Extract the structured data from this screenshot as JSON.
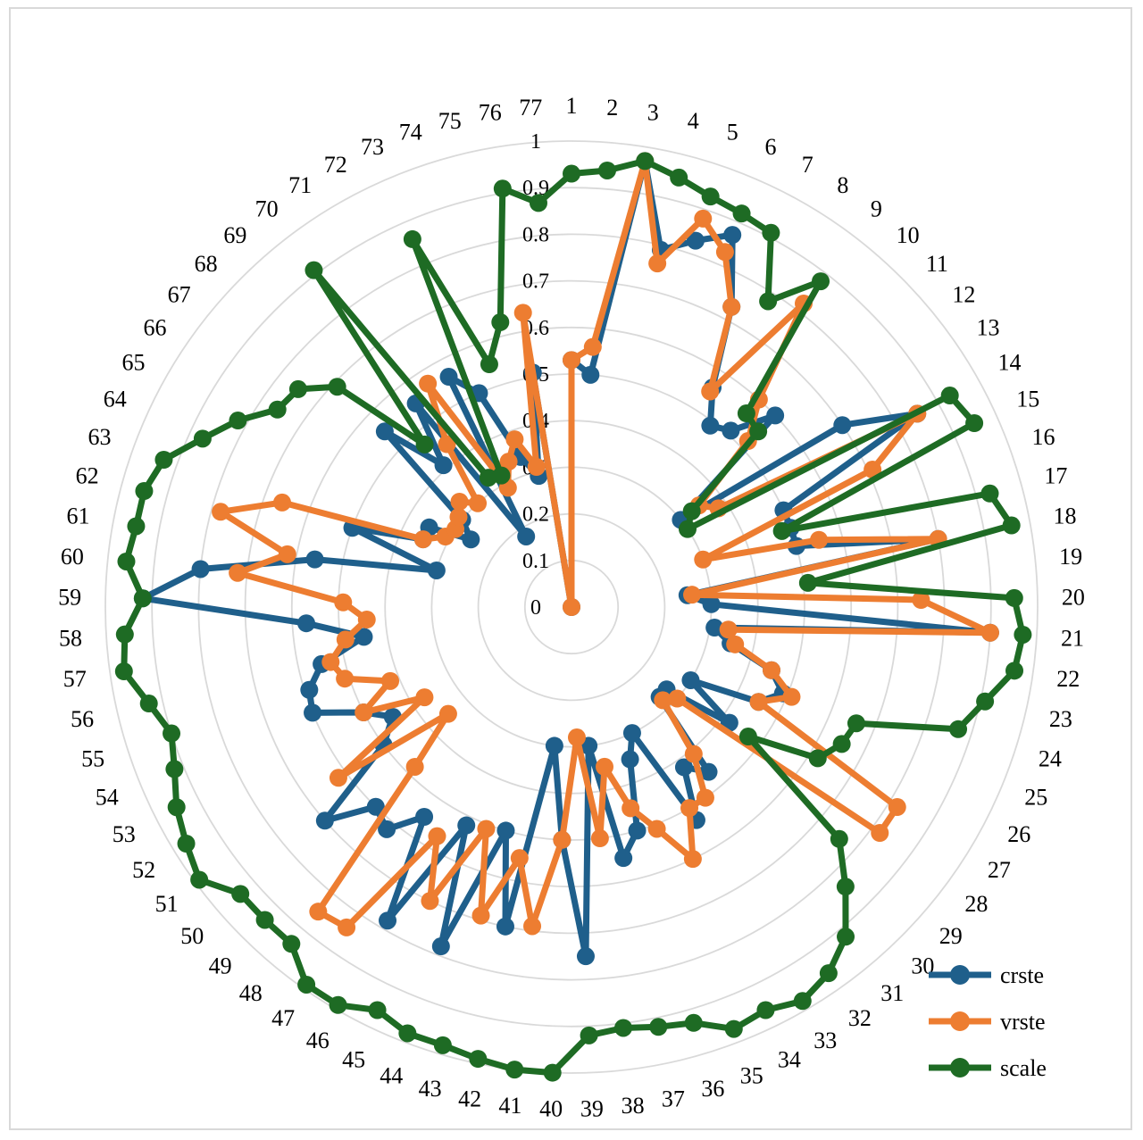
{
  "chart_data": {
    "type": "radar",
    "title": "",
    "categories": [
      "1",
      "2",
      "3",
      "4",
      "5",
      "6",
      "7",
      "8",
      "9",
      "10",
      "11",
      "12",
      "13",
      "14",
      "15",
      "16",
      "17",
      "18",
      "19",
      "20",
      "21",
      "22",
      "23",
      "24",
      "25",
      "26",
      "27",
      "28",
      "29",
      "30",
      "31",
      "32",
      "33",
      "34",
      "35",
      "36",
      "37",
      "38",
      "39",
      "40",
      "41",
      "42",
      "43",
      "44",
      "45",
      "46",
      "47",
      "48",
      "49",
      "50",
      "51",
      "52",
      "53",
      "54",
      "55",
      "56",
      "57",
      "58",
      "59",
      "60",
      "61",
      "62",
      "63",
      "64",
      "65",
      "66",
      "67",
      "68",
      "69",
      "70",
      "71",
      "72",
      "73",
      "74",
      "75",
      "76",
      "77"
    ],
    "r_ticks": [
      "0",
      "0.1",
      "0.2",
      "0.3",
      "0.4",
      "0.5",
      "0.6",
      "0.7",
      "0.8",
      "0.9",
      "1"
    ],
    "rlim": [
      0,
      1
    ],
    "grid": true,
    "legend_position": "bottom-right",
    "series": [
      {
        "name": "crste",
        "color": "#1f5f8b",
        "values": [
          0.53,
          0.5,
          0.97,
          0.79,
          0.83,
          0.87,
          0.73,
          0.56,
          0.49,
          0.51,
          0.6,
          0.3,
          0.7,
          0.85,
          0.5,
          0.5,
          0.5,
          0.8,
          0.25,
          0.3,
          0.9,
          0.31,
          0.35,
          0.45,
          0.49,
          0.45,
          0.3,
          0.42,
          0.27,
          0.27,
          0.46,
          0.42,
          0.53,
          0.3,
          0.35,
          0.5,
          0.55,
          0.3,
          0.75,
          0.5,
          0.3,
          0.7,
          0.5,
          0.78,
          0.52,
          0.78,
          0.55,
          0.62,
          0.6,
          0.7,
          0.5,
          0.45,
          0.5,
          0.6,
          0.59,
          0.55,
          0.45,
          0.57,
          0.92,
          0.8,
          0.56,
          0.3,
          0.5,
          0.35,
          0.35,
          0.26,
          0.3,
          0.55,
          0.41,
          0.55,
          0.18,
          0.56,
          0.5,
          0.34,
          0.29,
          0.51,
          0.0
        ]
      },
      {
        "name": "vrste",
        "color": "#ed7d31",
        "values": [
          0.53,
          0.56,
          0.97,
          0.76,
          0.88,
          0.83,
          0.73,
          0.55,
          0.82,
          0.6,
          0.52,
          0.35,
          0.38,
          0.85,
          0.71,
          0.3,
          0.55,
          0.8,
          0.26,
          0.75,
          0.9,
          0.34,
          0.36,
          0.45,
          0.51,
          0.45,
          0.82,
          0.82,
          0.3,
          0.28,
          0.41,
          0.5,
          0.5,
          0.6,
          0.51,
          0.45,
          0.35,
          0.5,
          0.28,
          0.5,
          0.69,
          0.55,
          0.69,
          0.51,
          0.7,
          0.57,
          0.84,
          0.85,
          0.48,
          0.35,
          0.62,
          0.37,
          0.5,
          0.42,
          0.51,
          0.53,
          0.49,
          0.44,
          0.49,
          0.72,
          0.62,
          0.78,
          0.66,
          0.35,
          0.31,
          0.3,
          0.31,
          0.33,
          0.3,
          0.44,
          0.57,
          0.29,
          0.34,
          0.38,
          0.31,
          0.64,
          0.0
        ]
      },
      {
        "name": "scale",
        "color": "#1e6b24",
        "values": [
          0.93,
          0.94,
          0.97,
          0.95,
          0.93,
          0.92,
          0.91,
          0.78,
          0.88,
          0.56,
          0.55,
          0.33,
          0.3,
          0.93,
          0.95,
          0.48,
          0.93,
          0.96,
          0.51,
          0.95,
          0.97,
          0.96,
          0.91,
          0.87,
          0.66,
          0.65,
          0.62,
          0.47,
          0.76,
          0.84,
          0.92,
          0.96,
          0.98,
          0.96,
          0.97,
          0.93,
          0.92,
          0.91,
          0.92,
          1.0,
          1.0,
          0.99,
          0.98,
          0.98,
          0.96,
          0.99,
          0.99,
          0.94,
          0.94,
          0.94,
          0.99,
          0.97,
          0.95,
          0.92,
          0.9,
          0.93,
          0.97,
          0.96,
          0.92,
          0.96,
          0.95,
          0.95,
          0.93,
          0.87,
          0.82,
          0.76,
          0.75,
          0.69,
          0.47,
          0.91,
          0.33,
          0.32,
          0.86,
          0.55,
          0.63,
          0.91,
          0.87
        ]
      }
    ]
  }
}
